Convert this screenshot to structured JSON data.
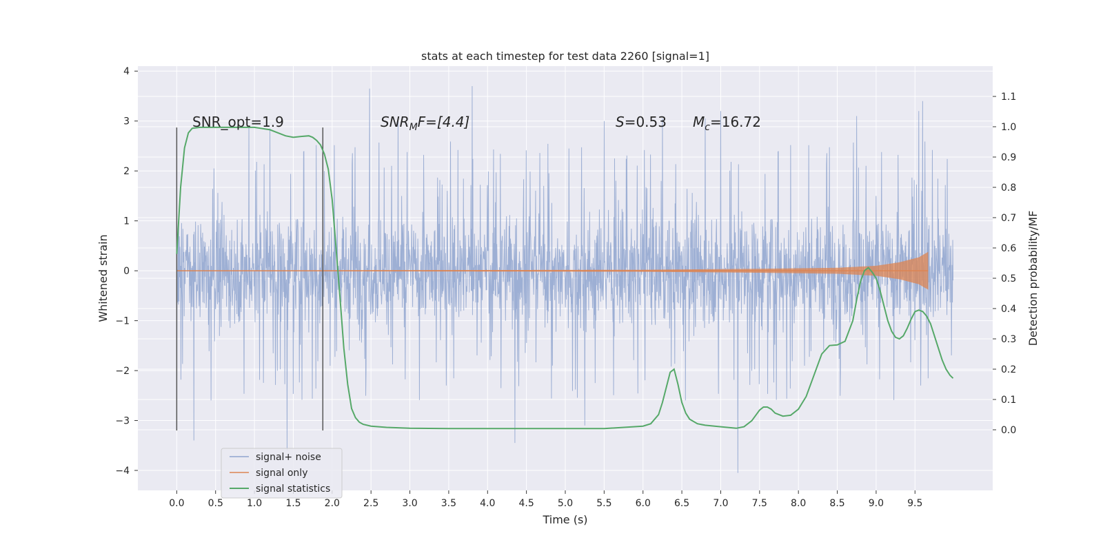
{
  "chart_data": {
    "type": "line",
    "title": "stats at each timestep for test data 2260 [signal=1]",
    "xlabel": "Time (s)",
    "ylabel_left": "Whitened strain",
    "ylabel_right": "Detection probability/MF",
    "xlim": [
      -0.5,
      10.5
    ],
    "ylim_left": [
      -4.4,
      4.1
    ],
    "ylim_right": [
      -0.2,
      1.2
    ],
    "x_ticks": [
      "0.0",
      "0.5",
      "1.0",
      "1.5",
      "2.0",
      "2.5",
      "3.0",
      "3.5",
      "4.0",
      "4.5",
      "5.0",
      "5.5",
      "6.0",
      "6.5",
      "7.0",
      "7.5",
      "8.0",
      "8.5",
      "9.0",
      "9.5"
    ],
    "y_ticks_left": [
      "4",
      "3",
      "2",
      "1",
      "0",
      "−1",
      "−2",
      "−3",
      "−4"
    ],
    "y_ticks_right": [
      "1.1",
      "1.0",
      "0.9",
      "0.8",
      "0.7",
      "0.6",
      "0.5",
      "0.4",
      "0.3",
      "0.2",
      "0.1",
      "0.0"
    ],
    "grid": true,
    "legend_position": "lower-left",
    "colors": {
      "noise": "#8fa4cf",
      "signal": "#dd8452",
      "stats": "#55a868",
      "background": "#eaeaf2",
      "grid": "#ffffff",
      "vline": "#555555"
    },
    "annotations": {
      "snr_opt": "SNR_opt=1.9",
      "snr_mf_base": "SNR",
      "snr_mf_sub": "M",
      "snr_mf_rest": "F=[4.4]",
      "s_sym": "S",
      "s_val": "=0.53",
      "mc_sym": "M",
      "mc_sub": "c",
      "mc_val": "=16.72"
    },
    "vertical_lines_x": [
      0.0,
      1.88
    ],
    "series": [
      {
        "name": "signal+ noise",
        "x_range": [
          0.0,
          9.99
        ],
        "typical_band": [
          -1.45,
          1.45
        ],
        "peaks_x": [
          0.0,
          0.22,
          0.48,
          0.93,
          1.2,
          1.42,
          1.9,
          2.48,
          2.85,
          3.8,
          4.35,
          5.25,
          5.5,
          6.25,
          6.8,
          7.0,
          7.22,
          8.75,
          9.55,
          9.6
        ],
        "peaks_y": [
          -3.2,
          -3.4,
          2.05,
          2.9,
          2.85,
          -3.6,
          2.0,
          3.65,
          3.05,
          3.7,
          -3.45,
          -3.1,
          3.0,
          3.05,
          3.05,
          3.2,
          -4.05,
          3.1,
          3.2,
          3.4
        ]
      },
      {
        "name": "signal only",
        "x_range": [
          0.0,
          9.67
        ],
        "amplitude_x": [
          0.0,
          6.0,
          7.5,
          8.5,
          9.0,
          9.3,
          9.55,
          9.67
        ],
        "amplitude_y": [
          0.005,
          0.02,
          0.04,
          0.06,
          0.1,
          0.17,
          0.27,
          0.38
        ]
      },
      {
        "name": "signal statistics",
        "x": [
          0.0,
          0.05,
          0.1,
          0.15,
          0.2,
          0.3,
          0.5,
          1.0,
          1.2,
          1.4,
          1.5,
          1.6,
          1.7,
          1.75,
          1.8,
          1.85,
          1.9,
          1.95,
          2.0,
          2.05,
          2.1,
          2.15,
          2.2,
          2.25,
          2.3,
          2.35,
          2.4,
          2.5,
          2.7,
          3.0,
          3.5,
          4.0,
          4.5,
          5.0,
          5.5,
          6.0,
          6.1,
          6.2,
          6.25,
          6.3,
          6.35,
          6.4,
          6.45,
          6.5,
          6.55,
          6.6,
          6.7,
          6.8,
          7.0,
          7.2,
          7.3,
          7.4,
          7.5,
          7.55,
          7.6,
          7.65,
          7.7,
          7.8,
          7.9,
          8.0,
          8.1,
          8.2,
          8.3,
          8.4,
          8.5,
          8.6,
          8.7,
          8.75,
          8.8,
          8.85,
          8.9,
          8.95,
          9.0,
          9.05,
          9.1,
          9.15,
          9.2,
          9.25,
          9.3,
          9.35,
          9.4,
          9.45,
          9.5,
          9.55,
          9.6,
          9.65,
          9.7,
          9.75,
          9.8,
          9.85,
          9.9,
          9.95,
          9.99
        ],
        "y": [
          0.58,
          0.8,
          0.93,
          0.98,
          0.995,
          0.998,
          0.998,
          0.998,
          0.99,
          0.97,
          0.965,
          0.968,
          0.97,
          0.965,
          0.955,
          0.94,
          0.91,
          0.86,
          0.76,
          0.6,
          0.44,
          0.27,
          0.15,
          0.07,
          0.04,
          0.025,
          0.018,
          0.012,
          0.008,
          0.005,
          0.004,
          0.004,
          0.004,
          0.004,
          0.004,
          0.012,
          0.02,
          0.05,
          0.09,
          0.14,
          0.19,
          0.2,
          0.15,
          0.09,
          0.055,
          0.035,
          0.02,
          0.015,
          0.01,
          0.005,
          0.01,
          0.03,
          0.065,
          0.075,
          0.075,
          0.068,
          0.055,
          0.045,
          0.048,
          0.068,
          0.11,
          0.18,
          0.25,
          0.278,
          0.28,
          0.292,
          0.36,
          0.43,
          0.49,
          0.525,
          0.535,
          0.52,
          0.5,
          0.46,
          0.41,
          0.36,
          0.325,
          0.305,
          0.3,
          0.31,
          0.335,
          0.365,
          0.39,
          0.395,
          0.39,
          0.375,
          0.35,
          0.31,
          0.27,
          0.23,
          0.2,
          0.18,
          0.17
        ]
      }
    ]
  }
}
